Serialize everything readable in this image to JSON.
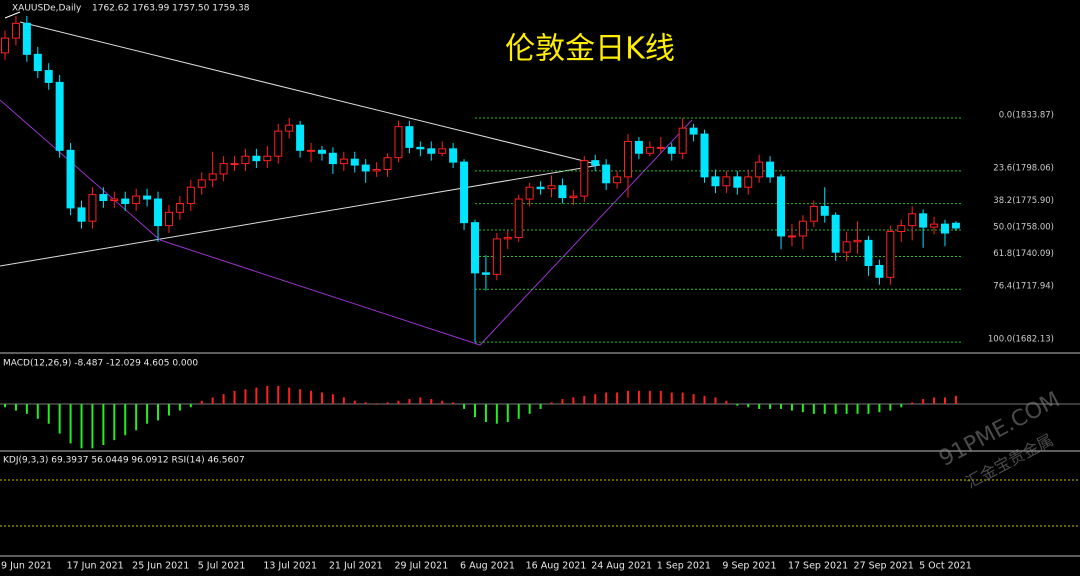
{
  "header": {
    "symbol": "XAUUSDe,Daily",
    "ohlc": "1762.62 1763.99 1757.50 1759.38"
  },
  "chart_data": [
    {
      "type": "candlestick",
      "title": "伦敦金日K线",
      "categories": [
        "9 Jun 2021",
        null,
        null,
        null,
        null,
        null,
        "17 Jun 2021",
        null,
        null,
        null,
        null,
        null,
        "25 Jun 2021",
        null,
        null,
        null,
        null,
        null,
        "5 Jul 2021",
        null,
        null,
        null,
        null,
        null,
        "13 Jul 2021",
        null,
        null,
        null,
        null,
        null,
        "21 Jul 2021",
        null,
        null,
        null,
        null,
        null,
        "29 Jul 2021",
        null,
        null,
        null,
        null,
        null,
        "6 Aug 2021",
        null,
        null,
        null,
        null,
        null,
        "16 Aug 2021",
        null,
        null,
        null,
        null,
        null,
        "24 Aug 2021",
        null,
        null,
        null,
        null,
        null,
        "1 Sep 2021",
        null,
        null,
        null,
        null,
        null,
        "9 Sep 2021",
        null,
        null,
        null,
        null,
        null,
        "17 Sep 2021",
        null,
        null,
        null,
        null,
        null,
        "27 Sep 2021",
        null,
        null,
        null,
        null,
        null,
        "5 Oct 2021",
        null,
        null,
        null
      ],
      "open": [
        1878,
        1888,
        1898,
        1877,
        1866,
        1858,
        1812,
        1773,
        1764,
        1782,
        1778,
        1779,
        1776,
        1781,
        1779,
        1761,
        1770,
        1776,
        1787,
        1792,
        1796,
        1803,
        1803,
        1808,
        1805,
        1808,
        1825,
        1829,
        1812,
        1812,
        1810,
        1803,
        1806,
        1802,
        1798,
        1799,
        1807,
        1828,
        1814,
        1813,
        1810,
        1813,
        1804,
        1763,
        1729,
        1728,
        1752,
        1753,
        1779,
        1787,
        1786,
        1788,
        1780,
        1781,
        1805,
        1802,
        1790,
        1794,
        1818,
        1810,
        1814,
        1814,
        1810,
        1827,
        1823,
        1794,
        1788,
        1794,
        1787,
        1794,
        1804,
        1794,
        1754,
        1754,
        1764,
        1774,
        1768,
        1743,
        1750,
        1751,
        1734,
        1726,
        1757,
        1761,
        1769,
        1760,
        1762,
        1762.62
      ],
      "high": [
        1893,
        1903,
        1903,
        1882,
        1871,
        1863,
        1817,
        1778,
        1787,
        1787,
        1784,
        1784,
        1786,
        1786,
        1784,
        1775,
        1781,
        1792,
        1797,
        1811,
        1808,
        1808,
        1813,
        1813,
        1815,
        1830,
        1834,
        1832,
        1817,
        1815,
        1814,
        1811,
        1811,
        1806,
        1804,
        1810,
        1832,
        1832,
        1818,
        1818,
        1818,
        1817,
        1806,
        1765,
        1741,
        1756,
        1758,
        1782,
        1790,
        1791,
        1795,
        1793,
        1785,
        1808,
        1809,
        1806,
        1798,
        1823,
        1821,
        1818,
        1821,
        1817,
        1833.87,
        1830,
        1826,
        1799,
        1798,
        1798,
        1799,
        1809,
        1808,
        1796,
        1762,
        1768,
        1778,
        1787,
        1770,
        1757,
        1764,
        1754,
        1738,
        1761,
        1765,
        1774,
        1772,
        1767,
        1765,
        1763.99
      ],
      "low": [
        1873,
        1883,
        1872,
        1861,
        1853,
        1807,
        1768,
        1759,
        1759,
        1773,
        1773,
        1771,
        1771,
        1774,
        1750,
        1756,
        1765,
        1771,
        1782,
        1787,
        1791,
        1798,
        1798,
        1800,
        1800,
        1803,
        1820,
        1807,
        1804,
        1805,
        1796,
        1798,
        1797,
        1790,
        1794,
        1794,
        1804,
        1810,
        1808,
        1805,
        1808,
        1800,
        1758,
        1682.13,
        1717,
        1724,
        1745,
        1750,
        1774,
        1782,
        1780,
        1776,
        1775,
        1777,
        1798,
        1785,
        1786,
        1780,
        1806,
        1808,
        1810,
        1805,
        1806,
        1818,
        1790,
        1783,
        1783,
        1782,
        1782,
        1790,
        1790,
        1745,
        1747,
        1745,
        1760,
        1763,
        1737,
        1737,
        1742,
        1727,
        1721,
        1721,
        1750,
        1751,
        1746,
        1755,
        1747,
        1757.5
      ],
      "close": [
        1888,
        1898,
        1877,
        1866,
        1858,
        1812,
        1773,
        1764,
        1782,
        1778,
        1779,
        1776,
        1781,
        1779,
        1761,
        1770,
        1776,
        1787,
        1792,
        1796,
        1803,
        1803,
        1808,
        1805,
        1808,
        1825,
        1829,
        1812,
        1812,
        1810,
        1803,
        1806,
        1802,
        1798,
        1799,
        1807,
        1828,
        1814,
        1813,
        1810,
        1813,
        1804,
        1763,
        1729,
        1728,
        1752,
        1753,
        1779,
        1787,
        1786,
        1788,
        1780,
        1781,
        1805,
        1802,
        1790,
        1794,
        1818,
        1810,
        1814,
        1814,
        1810,
        1827,
        1823,
        1794,
        1788,
        1794,
        1787,
        1794,
        1804,
        1794,
        1754,
        1754,
        1764,
        1774,
        1768,
        1743,
        1750,
        1751,
        1734,
        1726,
        1757,
        1761,
        1769,
        1760,
        1762,
        1756,
        1759.38
      ],
      "up_color": "#ff2020",
      "down_color": "#00e5ff",
      "ylim": [
        1675.4,
        1913.8
      ],
      "fib_levels": [
        {
          "value": 1833.87,
          "label": "0.0(1833.87)"
        },
        {
          "value": 1798.06,
          "label": "23.6(1798.06)"
        },
        {
          "value": 1775.9,
          "label": "38.2(1775.90)"
        },
        {
          "value": 1758.0,
          "label": "50.0(1758.00)"
        },
        {
          "value": 1740.09,
          "label": "61.8(1740.09)"
        },
        {
          "value": 1717.94,
          "label": "76.4(1717.94)"
        },
        {
          "value": 1682.13,
          "label": "100.0(1682.13)"
        }
      ],
      "fib_color": "#1fbf1f"
    },
    {
      "type": "bar",
      "title": "MACD(12,26,9) -8.487 -12.029 4.605 0.000",
      "values": [
        -2,
        -4,
        -6,
        -9,
        -12,
        -18,
        -24,
        -27,
        -27,
        -25,
        -22,
        -19,
        -16,
        -12,
        -10,
        -7,
        -4,
        -2,
        2,
        4,
        6,
        8,
        9,
        10,
        11,
        11,
        10,
        9,
        8,
        7,
        6,
        4,
        2,
        1,
        0.5,
        1,
        2,
        3,
        4,
        3,
        2,
        1,
        -3,
        -8,
        -11,
        -12,
        -11,
        -9,
        -6,
        -3,
        1,
        3,
        4,
        5,
        6,
        7,
        7,
        8,
        8,
        8,
        8,
        7,
        7,
        6,
        5,
        4,
        2,
        -1,
        -2,
        -3,
        -3,
        -3,
        -4,
        -5,
        -6,
        -6,
        -6,
        -6,
        -6,
        -6,
        -5,
        -4,
        -2,
        1,
        3,
        4,
        4,
        5
      ],
      "pos_color": "#ff2020",
      "neg_color": "#22ee22",
      "ylim": [
        -28,
        28
      ]
    }
  ],
  "kdj_header": "KDJ(9,3,3) 69.3937 56.0449 96.0912 RSI(14) 46.5607",
  "watermark": {
    "site": "91PME.COM",
    "brand": "汇金宝贵金属"
  }
}
